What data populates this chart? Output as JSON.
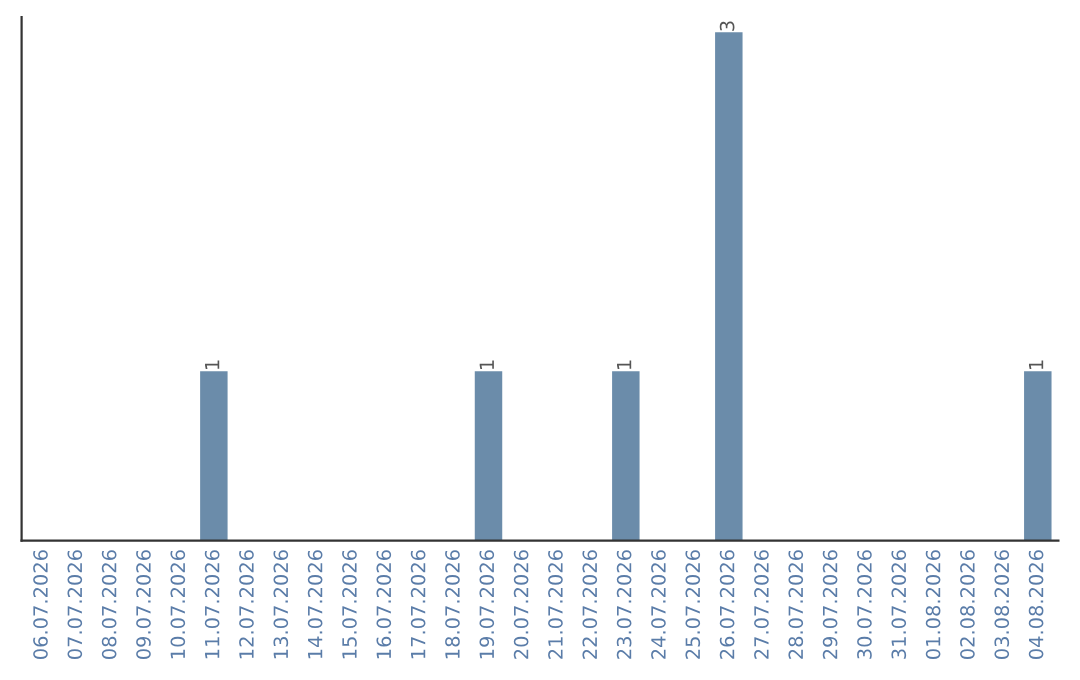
{
  "chart_data": {
    "type": "bar",
    "categories": [
      "06.07.2026",
      "07.07.2026",
      "08.07.2026",
      "09.07.2026",
      "10.07.2026",
      "11.07.2026",
      "12.07.2026",
      "13.07.2026",
      "14.07.2026",
      "15.07.2026",
      "16.07.2026",
      "17.07.2026",
      "18.07.2026",
      "19.07.2026",
      "20.07.2026",
      "21.07.2026",
      "22.07.2026",
      "23.07.2026",
      "24.07.2026",
      "25.07.2026",
      "26.07.2026",
      "27.07.2026",
      "28.07.2026",
      "29.07.2026",
      "30.07.2026",
      "31.07.2026",
      "01.08.2026",
      "02.08.2026",
      "03.08.2026",
      "04.08.2026"
    ],
    "values": [
      0,
      0,
      0,
      0,
      0,
      1,
      0,
      0,
      0,
      0,
      0,
      0,
      0,
      1,
      0,
      0,
      0,
      1,
      0,
      0,
      3,
      0,
      0,
      0,
      0,
      0,
      0,
      0,
      0,
      1
    ],
    "value_labels": [
      null,
      null,
      null,
      null,
      null,
      "1",
      null,
      null,
      null,
      null,
      null,
      null,
      null,
      "1",
      null,
      null,
      null,
      "1",
      null,
      null,
      "3",
      null,
      null,
      null,
      null,
      null,
      null,
      null,
      null,
      "1"
    ],
    "color": "#6b8caa",
    "tick_labels": "x",
    "grid": false,
    "legend": false
  }
}
